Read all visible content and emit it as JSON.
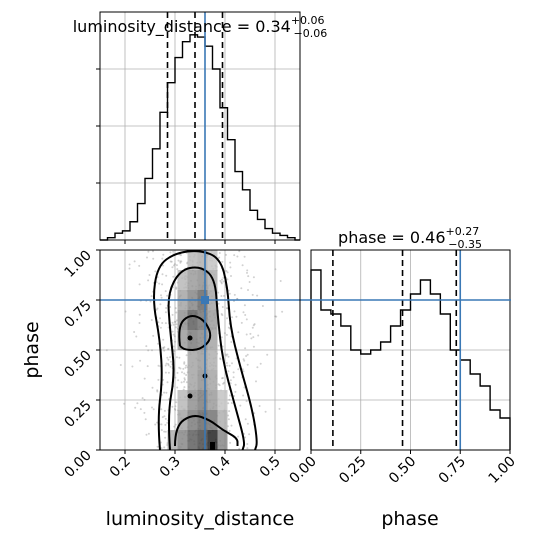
{
  "chart_data": {
    "type": "corner",
    "parameters": [
      "luminosity_distance",
      "phase"
    ],
    "truth": {
      "luminosity_distance": 0.36,
      "phase": 0.75,
      "color": "#3a78b5"
    },
    "panels": [
      {
        "name": "luminosity_distance-marginal",
        "type": "histogram-step",
        "title_param": "luminosity_distance",
        "median": "0.34",
        "plus": "+0.06",
        "minus": "−0.06",
        "xlim": [
          0.15,
          0.55
        ],
        "quantiles": [
          0.285,
          0.34,
          0.395
        ],
        "bin_edges": [
          0.15,
          0.165,
          0.18,
          0.195,
          0.21,
          0.225,
          0.24,
          0.255,
          0.27,
          0.285,
          0.3,
          0.315,
          0.33,
          0.345,
          0.36,
          0.375,
          0.39,
          0.405,
          0.42,
          0.435,
          0.45,
          0.465,
          0.48,
          0.495,
          0.51,
          0.525,
          0.54,
          0.55
        ],
        "counts": [
          0,
          1,
          3,
          4,
          8,
          16,
          27,
          40,
          56,
          69,
          80,
          87,
          90,
          89,
          85,
          75,
          58,
          44,
          30,
          22,
          13,
          9,
          5,
          3,
          2,
          1,
          0
        ]
      },
      {
        "name": "phase-marginal",
        "type": "histogram-step",
        "title_param": "phase",
        "median": "0.46",
        "plus": "+0.27",
        "minus": "−0.35",
        "xlim": [
          0.0,
          1.0
        ],
        "quantiles": [
          0.11,
          0.46,
          0.73
        ],
        "bin_edges": [
          0.0,
          0.05,
          0.1,
          0.15,
          0.2,
          0.25,
          0.3,
          0.35,
          0.4,
          0.45,
          0.5,
          0.55,
          0.6,
          0.65,
          0.7,
          0.75,
          0.8,
          0.85,
          0.9,
          0.95,
          1.0
        ],
        "counts": [
          90,
          70,
          68,
          62,
          50,
          48,
          50,
          54,
          62,
          70,
          78,
          85,
          78,
          68,
          50,
          45,
          38,
          32,
          20,
          16
        ]
      },
      {
        "name": "joint-density",
        "type": "2d-histogram-contour",
        "xlabel": "luminosity_distance",
        "ylabel": "phase",
        "xlim": [
          0.15,
          0.55
        ],
        "ylim": [
          0.0,
          1.0
        ],
        "contour_levels": 4,
        "density_cells": [
          {
            "x": 0.335,
            "y": 0.95,
            "v": 0.25
          },
          {
            "x": 0.355,
            "y": 0.95,
            "v": 0.3
          },
          {
            "x": 0.375,
            "y": 0.95,
            "v": 0.2
          },
          {
            "x": 0.315,
            "y": 0.85,
            "v": 0.25
          },
          {
            "x": 0.335,
            "y": 0.85,
            "v": 0.4
          },
          {
            "x": 0.355,
            "y": 0.85,
            "v": 0.45
          },
          {
            "x": 0.375,
            "y": 0.85,
            "v": 0.3
          },
          {
            "x": 0.315,
            "y": 0.75,
            "v": 0.35
          },
          {
            "x": 0.335,
            "y": 0.75,
            "v": 0.5
          },
          {
            "x": 0.355,
            "y": 0.75,
            "v": 0.65
          },
          {
            "x": 0.375,
            "y": 0.75,
            "v": 0.35
          },
          {
            "x": 0.315,
            "y": 0.65,
            "v": 0.45
          },
          {
            "x": 0.335,
            "y": 0.65,
            "v": 0.7
          },
          {
            "x": 0.355,
            "y": 0.65,
            "v": 0.6
          },
          {
            "x": 0.375,
            "y": 0.65,
            "v": 0.4
          },
          {
            "x": 0.315,
            "y": 0.55,
            "v": 0.4
          },
          {
            "x": 0.335,
            "y": 0.55,
            "v": 0.55
          },
          {
            "x": 0.355,
            "y": 0.55,
            "v": 0.5
          },
          {
            "x": 0.375,
            "y": 0.55,
            "v": 0.35
          },
          {
            "x": 0.335,
            "y": 0.45,
            "v": 0.35
          },
          {
            "x": 0.355,
            "y": 0.45,
            "v": 0.4
          },
          {
            "x": 0.375,
            "y": 0.45,
            "v": 0.3
          },
          {
            "x": 0.335,
            "y": 0.35,
            "v": 0.35
          },
          {
            "x": 0.355,
            "y": 0.35,
            "v": 0.45
          },
          {
            "x": 0.375,
            "y": 0.35,
            "v": 0.35
          },
          {
            "x": 0.315,
            "y": 0.25,
            "v": 0.25
          },
          {
            "x": 0.335,
            "y": 0.25,
            "v": 0.45
          },
          {
            "x": 0.355,
            "y": 0.25,
            "v": 0.55
          },
          {
            "x": 0.375,
            "y": 0.25,
            "v": 0.4
          },
          {
            "x": 0.395,
            "y": 0.25,
            "v": 0.2
          },
          {
            "x": 0.315,
            "y": 0.15,
            "v": 0.35
          },
          {
            "x": 0.335,
            "y": 0.15,
            "v": 0.55
          },
          {
            "x": 0.355,
            "y": 0.15,
            "v": 0.65
          },
          {
            "x": 0.375,
            "y": 0.15,
            "v": 0.6
          },
          {
            "x": 0.395,
            "y": 0.15,
            "v": 0.3
          },
          {
            "x": 0.295,
            "y": 0.05,
            "v": 0.3
          },
          {
            "x": 0.315,
            "y": 0.05,
            "v": 0.5
          },
          {
            "x": 0.335,
            "y": 0.05,
            "v": 0.7
          },
          {
            "x": 0.355,
            "y": 0.05,
            "v": 0.8
          },
          {
            "x": 0.375,
            "y": 0.05,
            "v": 1.0
          },
          {
            "x": 0.395,
            "y": 0.05,
            "v": 0.5
          }
        ],
        "contours": [
          [
            [
              0.27,
              0.0
            ],
            [
              0.265,
              0.15
            ],
            [
              0.275,
              0.35
            ],
            [
              0.27,
              0.55
            ],
            [
              0.255,
              0.75
            ],
            [
              0.265,
              0.92
            ],
            [
              0.3,
              0.985
            ],
            [
              0.35,
              1.0
            ],
            [
              0.39,
              0.96
            ],
            [
              0.405,
              0.82
            ],
            [
              0.41,
              0.62
            ],
            [
              0.43,
              0.42
            ],
            [
              0.455,
              0.2
            ],
            [
              0.465,
              0.04
            ],
            [
              0.46,
              0.0
            ]
          ],
          [
            [
              0.29,
              0.0
            ],
            [
              0.285,
              0.18
            ],
            [
              0.3,
              0.38
            ],
            [
              0.29,
              0.6
            ],
            [
              0.285,
              0.78
            ],
            [
              0.31,
              0.9
            ],
            [
              0.35,
              0.92
            ],
            [
              0.38,
              0.86
            ],
            [
              0.385,
              0.68
            ],
            [
              0.395,
              0.45
            ],
            [
              0.42,
              0.22
            ],
            [
              0.44,
              0.04
            ],
            [
              0.435,
              0.0
            ]
          ],
          [
            [
              0.3,
              0.02
            ],
            [
              0.3,
              0.12
            ],
            [
              0.335,
              0.18
            ],
            [
              0.37,
              0.15
            ],
            [
              0.395,
              0.1
            ],
            [
              0.425,
              0.06
            ],
            [
              0.425,
              0.02
            ]
          ],
          [
            [
              0.31,
              0.52
            ],
            [
              0.305,
              0.62
            ],
            [
              0.33,
              0.68
            ],
            [
              0.36,
              0.65
            ],
            [
              0.375,
              0.56
            ],
            [
              0.35,
              0.5
            ],
            [
              0.32,
              0.5
            ]
          ]
        ],
        "peak_points": [
          {
            "x": 0.33,
            "y": 0.27
          },
          {
            "x": 0.33,
            "y": 0.56
          },
          {
            "x": 0.36,
            "y": 0.37
          }
        ]
      }
    ],
    "x_ticks_distance": [
      "0.2",
      "0.3",
      "0.4",
      "0.5"
    ],
    "x_ticks_phase": [
      "0.00",
      "0.25",
      "0.50",
      "0.75",
      "1.00"
    ],
    "y_ticks_phase": [
      "0.00",
      "0.25",
      "0.50",
      "0.75",
      "1.00"
    ]
  }
}
